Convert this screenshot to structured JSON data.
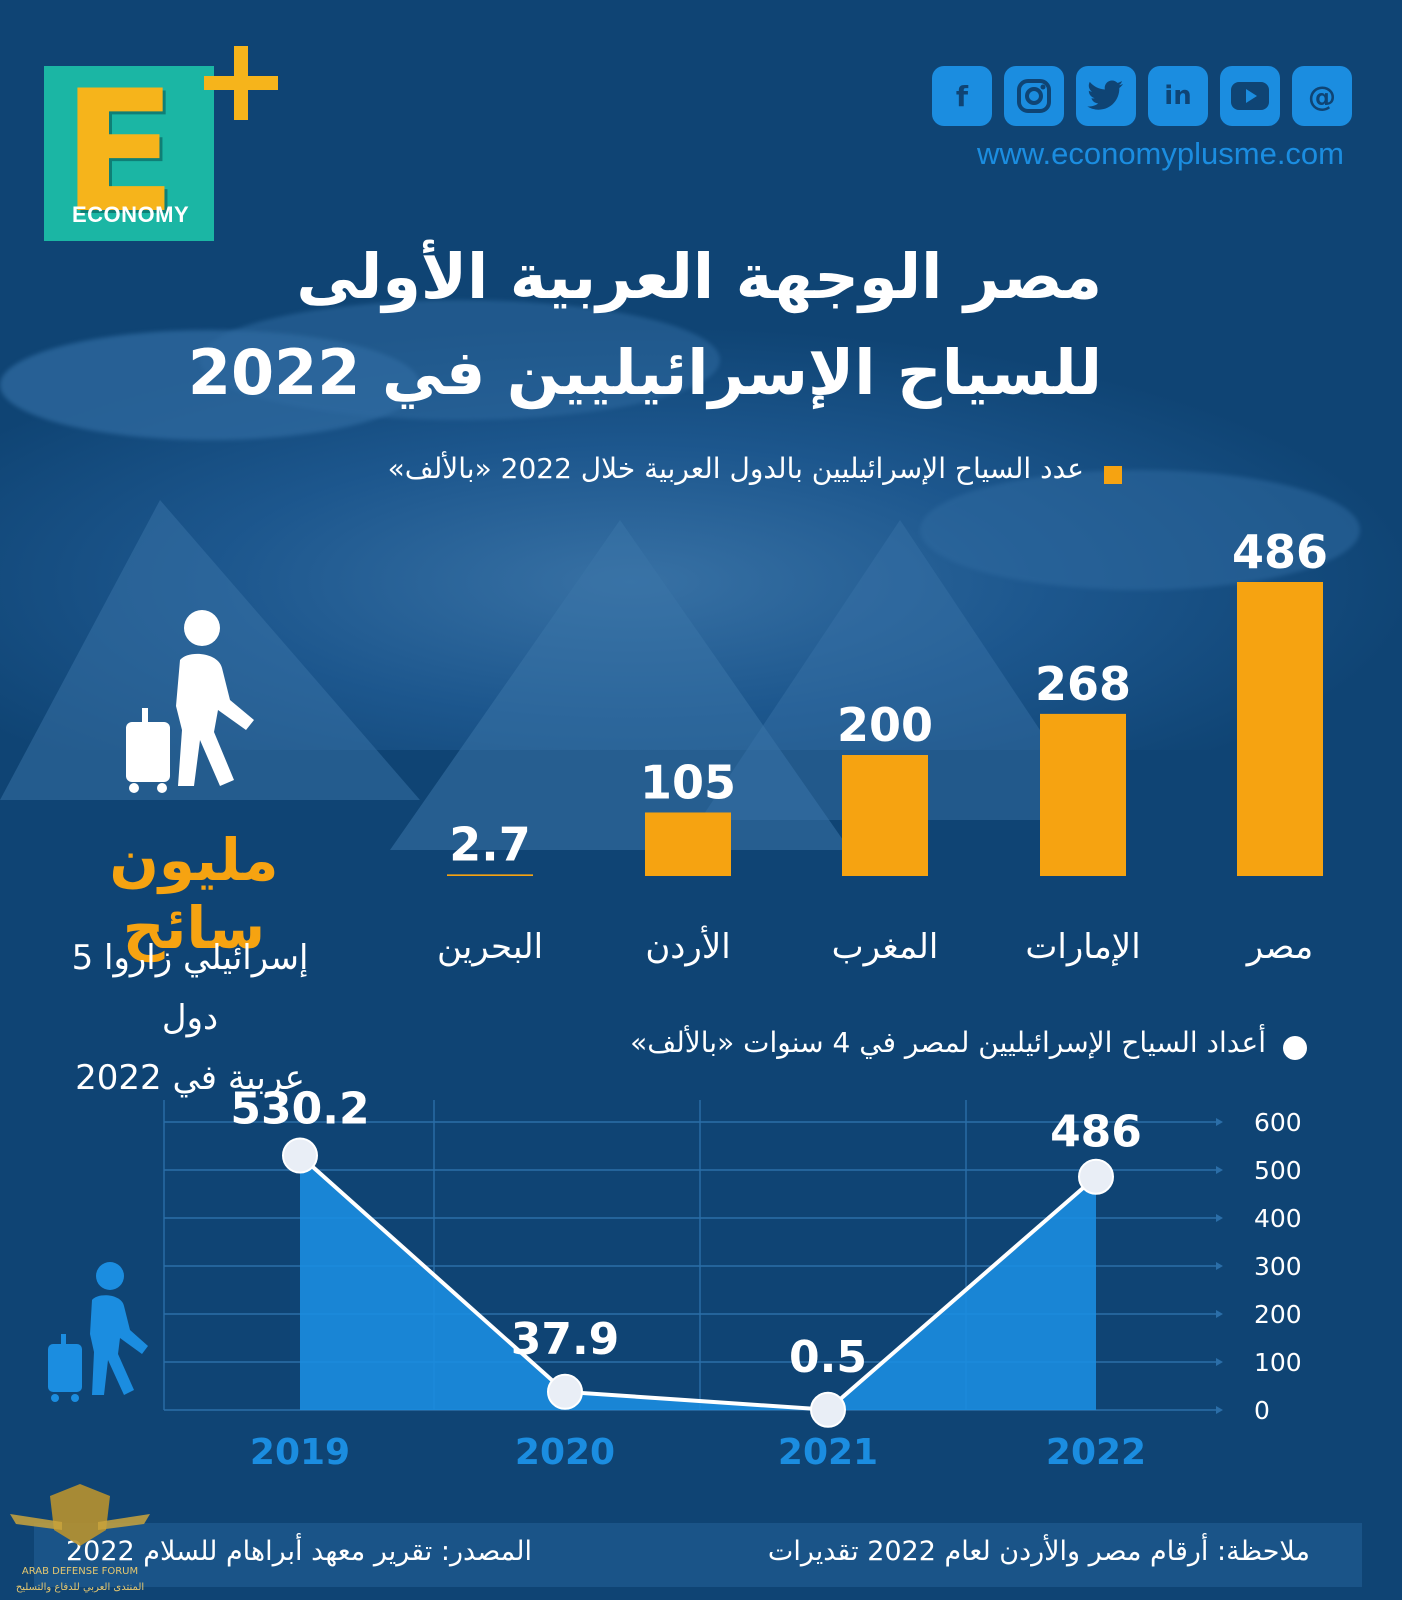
{
  "brand": {
    "logo_letter": "E",
    "logo_word": "ECONOMY",
    "website": "www.economyplusme.com"
  },
  "social_icons": [
    "facebook-icon",
    "instagram-icon",
    "twitter-icon",
    "linkedin-icon",
    "youtube-icon",
    "threads-icon"
  ],
  "title": {
    "line1": "مصر الوجهة العربية الأولى",
    "line2": "للسياح الإسرائيليين في 2022"
  },
  "side": {
    "big": "مليون سائح",
    "line1": "إسرائيلي زاروا 5 دول",
    "line2": "عربية في 2022"
  },
  "footer": {
    "note": "ملاحظة: أرقام مصر والأردن لعام 2022 تقديرات",
    "source": "المصدر: تقرير معهد أبراهام للسلام 2022"
  },
  "watermark": {
    "text1": "ARAB DEFENSE FORUM",
    "text2": "المنتدى العربي للدفاع والتسليح"
  },
  "colors": {
    "background": "#0f4474",
    "bar": "#f6a311",
    "accent_blue": "#1b8de0",
    "area": "#1b8de0",
    "line": "#ffffff"
  },
  "chart_data": [
    {
      "type": "bar",
      "subtitle": "عدد السياح الإسرائيليين بالدول العربية خلال 2022 «بالألف»",
      "categories": [
        "مصر",
        "الإمارات",
        "المغرب",
        "الأردن",
        "البحرين"
      ],
      "values": [
        486,
        268,
        200,
        105,
        2.7
      ],
      "value_labels": [
        "486",
        "268",
        "200",
        "105",
        "2.7"
      ],
      "ylim": [
        0,
        486
      ],
      "grid": false,
      "legend": "none"
    },
    {
      "type": "area",
      "subtitle": "أعداد السياح الإسرائيليين لمصر في 4 سنوات «بالألف»",
      "x": [
        "2019",
        "2020",
        "2021",
        "2022"
      ],
      "values": [
        530.2,
        37.9,
        0.5,
        486
      ],
      "value_labels": [
        "530.2",
        "37.9",
        "0.5",
        "486"
      ],
      "yticks": [
        "0",
        "100",
        "200",
        "300",
        "400",
        "500",
        "600"
      ],
      "ylim": [
        0,
        600
      ],
      "grid": true,
      "y_axis_side": "right",
      "legend": "none"
    }
  ]
}
